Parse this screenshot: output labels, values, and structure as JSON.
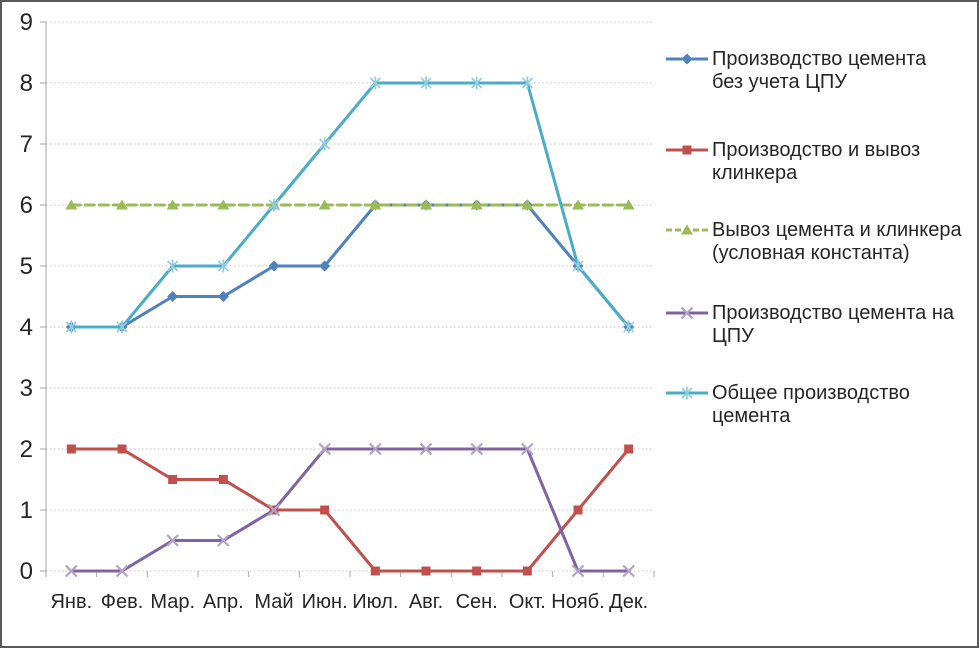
{
  "chart_data": {
    "type": "line",
    "title": "",
    "xlabel": "",
    "ylabel": "",
    "categories": [
      "Янв.",
      "Фев.",
      "Мар.",
      "Апр.",
      "Май",
      "Июн.",
      "Июл.",
      "Авг.",
      "Сен.",
      "Окт.",
      "Нояб.",
      "Дек."
    ],
    "ylim": [
      0,
      9
    ],
    "ytick_step": 1,
    "ytick_labels": [
      "0",
      "1",
      "2",
      "3",
      "4",
      "5",
      "6",
      "7",
      "8",
      "9"
    ],
    "grid": "horizontal-dotted",
    "legend_position": "right",
    "series": [
      {
        "name": "Производство цемента без учета ЦПУ",
        "color": "#4F81BD",
        "marker": "diamond",
        "marker_color": "#4F81BD",
        "dash": "solid",
        "values": [
          4,
          4,
          4.5,
          4.5,
          5,
          5,
          6,
          6,
          6,
          6,
          5,
          4
        ]
      },
      {
        "name": "Производство и вывоз клинкера",
        "color": "#C0504D",
        "marker": "square",
        "marker_color": "#C0504D",
        "dash": "solid",
        "values": [
          2,
          2,
          1.5,
          1.5,
          1,
          1,
          0,
          0,
          0,
          0,
          1,
          2
        ]
      },
      {
        "name": "Вывоз цемента и клинкера (условная константа)",
        "color": "#9BBB59",
        "marker": "triangle",
        "marker_color": "#9BBB59",
        "dash": "dashed",
        "values": [
          6,
          6,
          6,
          6,
          6,
          6,
          6,
          6,
          6,
          6,
          6,
          6
        ]
      },
      {
        "name": "Производство цемента на ЦПУ",
        "color": "#8064A2",
        "marker": "x",
        "marker_color": "#B3A2C7",
        "dash": "solid",
        "values": [
          0,
          0,
          0.5,
          0.5,
          1,
          2,
          2,
          2,
          2,
          2,
          0,
          0
        ]
      },
      {
        "name": "Общее производство цемента",
        "color": "#4BACC6",
        "marker": "asterisk",
        "marker_color": "#93CDDD",
        "dash": "solid",
        "values": [
          4,
          4,
          5,
          5,
          6,
          7,
          8,
          8,
          8,
          8,
          5,
          4
        ]
      }
    ],
    "colors": {
      "grid": "#C3C3C3",
      "axis": "#A6A6A6",
      "text": "#262626",
      "background": "#FFFFFF",
      "border": "#595959"
    }
  }
}
